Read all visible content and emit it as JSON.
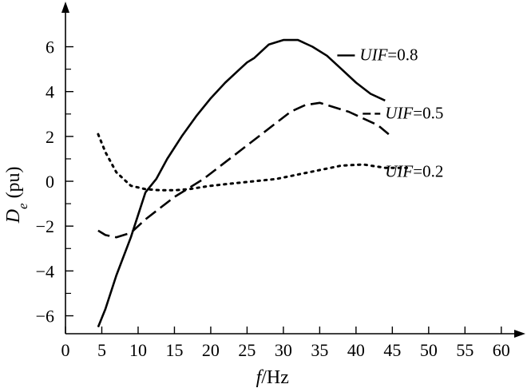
{
  "chart_data": {
    "type": "line",
    "xlabel_var": "f",
    "xlabel_unit": "/Hz",
    "ylabel_var": "D",
    "ylabel_sub": "e",
    "ylabel_unit": "(pu)",
    "xlim": [
      0,
      62
    ],
    "ylim": [
      -6.8,
      7.8
    ],
    "x_ticks": [
      0,
      5,
      10,
      15,
      20,
      25,
      30,
      35,
      40,
      45,
      50,
      55,
      60
    ],
    "x_tick_labels": [
      "0",
      "5",
      "10",
      "15",
      "20",
      "25",
      "30",
      "35",
      "40",
      "45",
      "50",
      "55",
      "60"
    ],
    "y_major_ticks": [
      -6,
      -4,
      -2,
      0,
      2,
      4,
      6
    ],
    "y_tick_labels": [
      "−6",
      "−4",
      "−2",
      "0",
      "2",
      "4",
      "6"
    ],
    "y_minor_ticks": [
      -5,
      -3,
      -1,
      1,
      3,
      5
    ],
    "grid": false,
    "series": [
      {
        "name_var": "UIF",
        "name_value": "=0.8",
        "style": "solid",
        "label_at": [
          40.5,
          5.4
        ],
        "points": [
          [
            4.5,
            -6.5
          ],
          [
            5.5,
            -5.7
          ],
          [
            7,
            -4.2
          ],
          [
            9,
            -2.5
          ],
          [
            11,
            -0.5
          ],
          [
            12.5,
            0.1
          ],
          [
            14,
            1.0
          ],
          [
            16,
            2.0
          ],
          [
            18,
            2.9
          ],
          [
            20,
            3.7
          ],
          [
            22,
            4.4
          ],
          [
            24,
            5.0
          ],
          [
            25,
            5.3
          ],
          [
            26,
            5.5
          ],
          [
            28,
            6.1
          ],
          [
            30,
            6.3
          ],
          [
            32,
            6.3
          ],
          [
            34,
            6.0
          ],
          [
            36,
            5.6
          ],
          [
            38,
            5.0
          ],
          [
            40,
            4.4
          ],
          [
            42,
            3.9
          ],
          [
            44,
            3.6
          ]
        ]
      },
      {
        "name_var": "UIF",
        "name_value": "=0.5",
        "style": "dashed",
        "label_at": [
          44,
          2.8
        ],
        "points": [
          [
            4.5,
            -2.2
          ],
          [
            5.5,
            -2.4
          ],
          [
            7,
            -2.5
          ],
          [
            9,
            -2.3
          ],
          [
            11,
            -1.7
          ],
          [
            13,
            -1.2
          ],
          [
            15,
            -0.7
          ],
          [
            17,
            -0.3
          ],
          [
            19,
            0.1
          ],
          [
            21,
            0.6
          ],
          [
            23,
            1.1
          ],
          [
            25,
            1.6
          ],
          [
            27,
            2.1
          ],
          [
            29,
            2.6
          ],
          [
            31,
            3.1
          ],
          [
            33,
            3.4
          ],
          [
            35,
            3.5
          ],
          [
            37,
            3.3
          ],
          [
            39,
            3.1
          ],
          [
            41,
            2.8
          ],
          [
            43,
            2.5
          ],
          [
            44.5,
            2.1
          ]
        ]
      },
      {
        "name_var": "UIF",
        "name_value": "=0.2",
        "style": "dotted",
        "label_at": [
          44,
          0.2
        ],
        "points": [
          [
            4.5,
            2.1
          ],
          [
            5.5,
            1.3
          ],
          [
            7,
            0.4
          ],
          [
            9,
            -0.2
          ],
          [
            11,
            -0.35
          ],
          [
            13,
            -0.4
          ],
          [
            15,
            -0.4
          ],
          [
            17,
            -0.35
          ],
          [
            20,
            -0.2
          ],
          [
            23,
            -0.1
          ],
          [
            26,
            0.0
          ],
          [
            29,
            0.1
          ],
          [
            32,
            0.3
          ],
          [
            35,
            0.5
          ],
          [
            38,
            0.7
          ],
          [
            41,
            0.75
          ],
          [
            44,
            0.6
          ],
          [
            47,
            0.6
          ]
        ]
      }
    ]
  }
}
